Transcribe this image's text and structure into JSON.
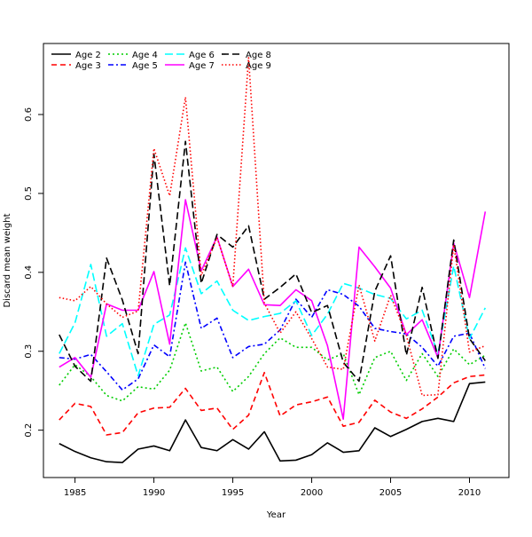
{
  "chart_data": {
    "type": "line",
    "title": "",
    "xlabel": "Year",
    "ylabel": "Discard mean weight",
    "xlim": [
      1983,
      2012.5
    ],
    "ylim": [
      0.14,
      0.69
    ],
    "xticks": [
      1985,
      1990,
      1995,
      2000,
      2005,
      2010
    ],
    "yticks": [
      0.2,
      0.3,
      0.4,
      0.5,
      0.6
    ],
    "ytick_labels": [
      "0.2",
      "0.3",
      "0.4",
      "0.5",
      "0.6"
    ],
    "legend": {
      "position": "top-left",
      "columns": 4
    },
    "x": [
      1984,
      1985,
      1986,
      1987,
      1988,
      1989,
      1990,
      1991,
      1992,
      1993,
      1994,
      1995,
      1996,
      1997,
      1998,
      1999,
      2000,
      2001,
      2002,
      2003,
      2004,
      2005,
      2006,
      2007,
      2008,
      2009,
      2010,
      2011
    ],
    "series": [
      {
        "name": "Age 2",
        "color": "#000000",
        "dash": "solid",
        "values": [
          0.183,
          0.173,
          0.165,
          0.16,
          0.159,
          0.176,
          0.18,
          0.174,
          0.213,
          0.178,
          0.174,
          0.188,
          0.176,
          0.198,
          0.161,
          0.162,
          0.169,
          0.184,
          0.172,
          0.174,
          0.203,
          0.192,
          0.201,
          0.211,
          0.215,
          0.211,
          0.259,
          0.261
        ]
      },
      {
        "name": "Age 3",
        "color": "#ff0000",
        "dash": "dashed",
        "values": [
          0.213,
          0.234,
          0.23,
          0.194,
          0.197,
          0.222,
          0.228,
          0.229,
          0.253,
          0.225,
          0.228,
          0.201,
          0.219,
          0.273,
          0.218,
          0.232,
          0.236,
          0.242,
          0.205,
          0.21,
          0.238,
          0.223,
          0.215,
          0.227,
          0.242,
          0.26,
          0.268,
          0.27
        ]
      },
      {
        "name": "Age 4",
        "color": "#00cd00",
        "dash": "dotted",
        "values": [
          0.257,
          0.283,
          0.268,
          0.244,
          0.237,
          0.255,
          0.252,
          0.276,
          0.336,
          0.275,
          0.28,
          0.249,
          0.268,
          0.297,
          0.317,
          0.305,
          0.305,
          0.289,
          0.297,
          0.245,
          0.292,
          0.3,
          0.263,
          0.297,
          0.268,
          0.303,
          0.283,
          0.295
        ]
      },
      {
        "name": "Age 5",
        "color": "#0000ff",
        "dash": "dashdot",
        "values": [
          0.292,
          0.29,
          0.296,
          0.274,
          0.251,
          0.265,
          0.308,
          0.293,
          0.413,
          0.329,
          0.342,
          0.292,
          0.306,
          0.309,
          0.327,
          0.366,
          0.343,
          0.378,
          0.372,
          0.357,
          0.329,
          0.325,
          0.322,
          0.305,
          0.281,
          0.319,
          0.323,
          0.278
        ]
      },
      {
        "name": "Age 6",
        "color": "#00ffff",
        "dash": "longdash",
        "values": [
          0.297,
          0.336,
          0.41,
          0.319,
          0.335,
          0.269,
          0.334,
          0.346,
          0.431,
          0.373,
          0.389,
          0.352,
          0.339,
          0.344,
          0.348,
          0.364,
          0.32,
          0.347,
          0.386,
          0.38,
          0.372,
          0.367,
          0.341,
          0.352,
          0.297,
          0.408,
          0.316,
          0.355
        ]
      },
      {
        "name": "Age 7",
        "color": "#ff00ff",
        "dash": "solid",
        "values": [
          0.28,
          0.292,
          0.267,
          0.36,
          0.352,
          0.352,
          0.401,
          0.309,
          0.492,
          0.402,
          0.445,
          0.382,
          0.404,
          0.359,
          0.358,
          0.378,
          0.364,
          0.307,
          0.214,
          0.432,
          0.407,
          0.38,
          0.321,
          0.34,
          0.292,
          0.437,
          0.368,
          0.477
        ]
      },
      {
        "name": "Age 8",
        "color": "#000000",
        "dash": "twodash",
        "values": [
          0.321,
          0.281,
          0.262,
          0.418,
          0.365,
          0.297,
          0.55,
          0.383,
          0.566,
          0.386,
          0.448,
          0.432,
          0.459,
          0.366,
          0.381,
          0.398,
          0.349,
          0.358,
          0.286,
          0.262,
          0.376,
          0.421,
          0.295,
          0.381,
          0.291,
          0.441,
          0.316,
          0.288
        ]
      },
      {
        "name": "Age 9",
        "color": "#ff0000",
        "dash": "finedot",
        "values": [
          0.368,
          0.364,
          0.382,
          0.36,
          0.343,
          0.351,
          0.557,
          0.497,
          0.622,
          0.396,
          0.444,
          0.382,
          0.672,
          0.361,
          0.323,
          0.35,
          0.316,
          0.28,
          0.277,
          0.384,
          0.313,
          0.371,
          0.32,
          0.244,
          0.245,
          0.435,
          0.299,
          0.307
        ]
      }
    ]
  }
}
